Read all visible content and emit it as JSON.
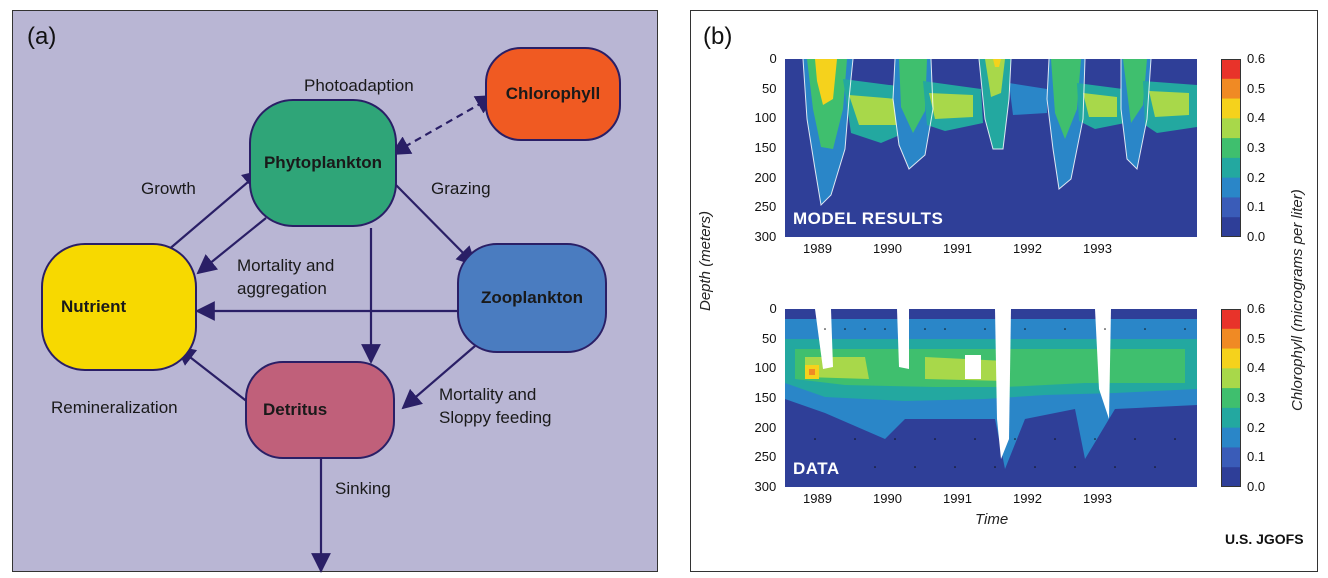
{
  "panel_a": {
    "label": "(a)",
    "nodes": {
      "chlorophyll": "Chlorophyll",
      "phytoplankton": "Phytoplankton",
      "nutrient": "Nutrient",
      "zooplankton": "Zooplankton",
      "detritus": "Detritus"
    },
    "node_colors": {
      "chlorophyll": "#f05a22",
      "phytoplankton": "#2fa578",
      "nutrient": "#f7d900",
      "zooplankton": "#4a7cc0",
      "detritus": "#c0607a"
    },
    "edges": {
      "photoadaption": "Photoadaption",
      "growth": "Growth",
      "grazing": "Grazing",
      "mortality_aggregation_1": "Mortality and",
      "mortality_aggregation_2": "aggregation",
      "remineralization": "Remineralization",
      "sloppy_1": "Mortality and",
      "sloppy_2": "Sloppy feeding",
      "sinking": "Sinking"
    },
    "arrow_color": "#2a1f66",
    "background": "#b9b6d4"
  },
  "panel_b": {
    "label": "(b)",
    "top_plot_label": "MODEL RESULTS",
    "bottom_plot_label": "DATA",
    "y_axis_title": "Depth (meters)",
    "x_axis_title": "Time",
    "colorbar_title": "Chlorophyll (micrograms per liter)",
    "credit": "U.S. JGOFS",
    "depth_ticks": [
      "0",
      "50",
      "100",
      "150",
      "200",
      "250",
      "300"
    ],
    "year_ticks": [
      "1989",
      "1990",
      "1991",
      "1992",
      "1993"
    ],
    "colorbar_ticks": [
      "0.6",
      "0.5",
      "0.4",
      "0.3",
      "0.2",
      "0.1",
      "0.0"
    ],
    "colorbar_colors": [
      "#e8332a",
      "#f08a24",
      "#f5d21c",
      "#a8d84a",
      "#3fbf6e",
      "#23a8a0",
      "#2a86c8",
      "#3a5cb8",
      "#2e3e98"
    ]
  }
}
